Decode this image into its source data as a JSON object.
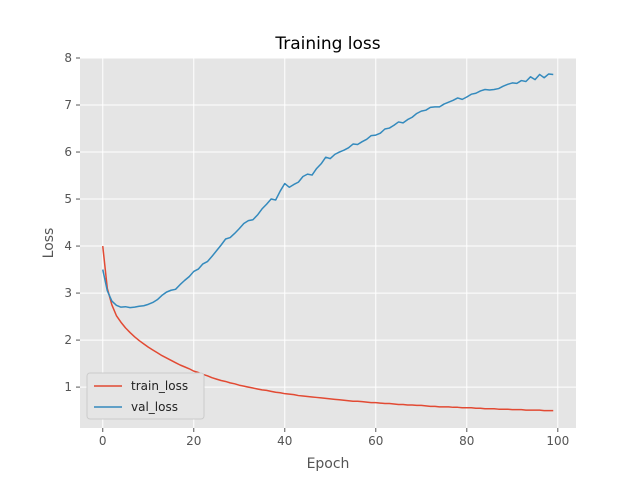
{
  "chart_data": {
    "type": "line",
    "title": "Training loss",
    "xlabel": "Epoch",
    "ylabel": "Loss",
    "xlim": [
      -5,
      104
    ],
    "ylim": [
      0.13,
      8.0
    ],
    "xticks": [
      0,
      20,
      40,
      60,
      80,
      100
    ],
    "yticks": [
      1,
      2,
      3,
      4,
      5,
      6,
      7,
      8
    ],
    "grid": true,
    "legend_position": "bottom-left",
    "x": [
      0,
      1,
      2,
      3,
      4,
      5,
      6,
      7,
      8,
      9,
      10,
      11,
      12,
      13,
      14,
      15,
      16,
      17,
      18,
      19,
      20,
      21,
      22,
      23,
      24,
      25,
      26,
      27,
      28,
      29,
      30,
      31,
      32,
      33,
      34,
      35,
      36,
      37,
      38,
      39,
      40,
      41,
      42,
      43,
      44,
      45,
      46,
      47,
      48,
      49,
      50,
      51,
      52,
      53,
      54,
      55,
      56,
      57,
      58,
      59,
      60,
      61,
      62,
      63,
      64,
      65,
      66,
      67,
      68,
      69,
      70,
      71,
      72,
      73,
      74,
      75,
      76,
      77,
      78,
      79,
      80,
      81,
      82,
      83,
      84,
      85,
      86,
      87,
      88,
      89,
      90,
      91,
      92,
      93,
      94,
      95,
      96,
      97,
      98,
      99
    ],
    "series": [
      {
        "name": "train_loss",
        "color": "#E24A33",
        "values": [
          4.0,
          3.1,
          2.75,
          2.52,
          2.38,
          2.26,
          2.16,
          2.07,
          1.99,
          1.92,
          1.85,
          1.79,
          1.73,
          1.67,
          1.62,
          1.57,
          1.52,
          1.47,
          1.43,
          1.39,
          1.34,
          1.31,
          1.27,
          1.24,
          1.2,
          1.17,
          1.14,
          1.12,
          1.09,
          1.07,
          1.04,
          1.02,
          1.0,
          0.98,
          0.96,
          0.94,
          0.93,
          0.91,
          0.89,
          0.88,
          0.86,
          0.85,
          0.84,
          0.82,
          0.81,
          0.8,
          0.79,
          0.78,
          0.77,
          0.76,
          0.75,
          0.74,
          0.73,
          0.72,
          0.71,
          0.7,
          0.7,
          0.69,
          0.68,
          0.67,
          0.67,
          0.66,
          0.65,
          0.65,
          0.64,
          0.63,
          0.63,
          0.62,
          0.62,
          0.61,
          0.61,
          0.6,
          0.59,
          0.59,
          0.58,
          0.58,
          0.58,
          0.57,
          0.57,
          0.56,
          0.56,
          0.56,
          0.55,
          0.55,
          0.54,
          0.54,
          0.54,
          0.53,
          0.53,
          0.53,
          0.52,
          0.52,
          0.52,
          0.51,
          0.51,
          0.51,
          0.51,
          0.5,
          0.5,
          0.5
        ]
      },
      {
        "name": "val_loss",
        "color": "#348ABD",
        "values": [
          3.5,
          3.05,
          2.83,
          2.74,
          2.7,
          2.71,
          2.69,
          2.7,
          2.72,
          2.73,
          2.76,
          2.8,
          2.86,
          2.95,
          3.02,
          3.06,
          3.08,
          3.18,
          3.27,
          3.35,
          3.46,
          3.51,
          3.62,
          3.67,
          3.78,
          3.9,
          4.02,
          4.15,
          4.18,
          4.27,
          4.37,
          4.48,
          4.54,
          4.56,
          4.66,
          4.79,
          4.89,
          5.0,
          4.98,
          5.17,
          5.33,
          5.25,
          5.31,
          5.36,
          5.48,
          5.53,
          5.51,
          5.65,
          5.75,
          5.89,
          5.86,
          5.95,
          6.0,
          6.04,
          6.09,
          6.17,
          6.16,
          6.22,
          6.27,
          6.35,
          6.36,
          6.4,
          6.49,
          6.51,
          6.57,
          6.64,
          6.62,
          6.69,
          6.74,
          6.82,
          6.87,
          6.89,
          6.95,
          6.96,
          6.96,
          7.02,
          7.06,
          7.1,
          7.15,
          7.12,
          7.17,
          7.23,
          7.25,
          7.3,
          7.33,
          7.32,
          7.33,
          7.35,
          7.4,
          7.44,
          7.47,
          7.46,
          7.52,
          7.5,
          7.6,
          7.54,
          7.65,
          7.58,
          7.66,
          7.65
        ]
      }
    ]
  }
}
